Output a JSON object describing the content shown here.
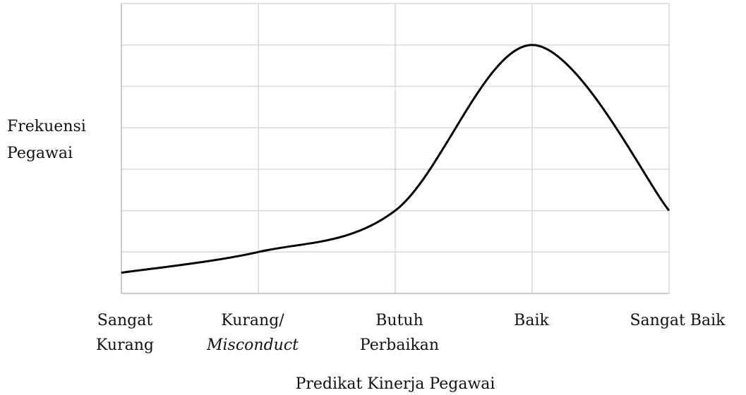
{
  "chart_data": {
    "type": "line",
    "categories": [
      [
        "Sangat",
        "Kurang"
      ],
      [
        "Kurang/",
        "Misconduct"
      ],
      [
        "Butuh",
        "Perbaikan"
      ],
      [
        "Baik"
      ],
      [
        "Sangat Baik"
      ]
    ],
    "values": [
      0.5,
      1.0,
      2.0,
      6.0,
      2.0
    ],
    "color": "#000000",
    "ylim": [
      0,
      7
    ],
    "yticks": [
      0,
      1,
      2,
      3,
      4,
      5,
      6,
      7
    ],
    "grid": true,
    "xlabel": "Predikat Kinerja Pegawai",
    "ylabel": [
      "Frekuensi",
      "Pegawai"
    ]
  }
}
